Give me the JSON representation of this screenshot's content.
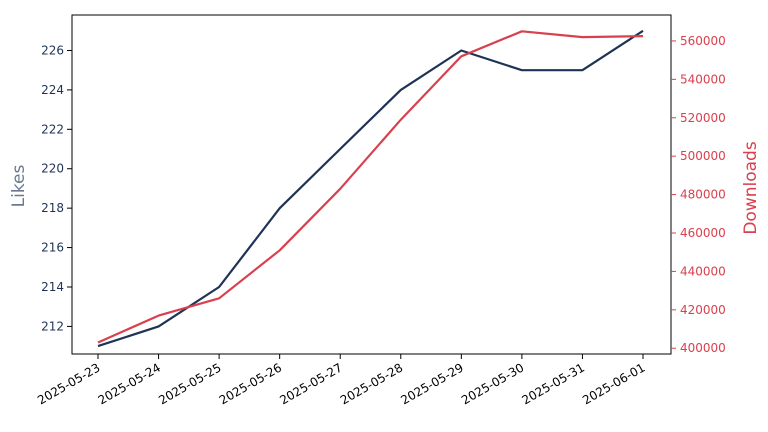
{
  "chart_data": {
    "type": "line",
    "x": [
      "2025-05-23",
      "2025-05-24",
      "2025-05-25",
      "2025-05-26",
      "2025-05-27",
      "2025-05-28",
      "2025-05-29",
      "2025-05-30",
      "2025-05-31",
      "2025-06-01"
    ],
    "left_axis": {
      "label": "Likes",
      "label_color": "#6b7a90",
      "tick_color": "#1f3354",
      "ylim": [
        210.6,
        227.8
      ],
      "ticks": [
        212,
        214,
        216,
        218,
        220,
        222,
        224,
        226
      ]
    },
    "right_axis": {
      "label": "Downloads",
      "color": "#d9404e",
      "ylim": [
        397000,
        573500
      ],
      "ticks": [
        400000,
        420000,
        440000,
        460000,
        480000,
        500000,
        520000,
        540000,
        560000
      ]
    },
    "series": [
      {
        "axis": "left",
        "color": "#1f3354",
        "values": [
          211,
          212,
          214,
          218,
          221,
          224,
          226,
          225,
          225,
          227
        ]
      },
      {
        "axis": "right",
        "color": "#d9404e",
        "values": [
          403000,
          417000,
          426000,
          451000,
          483000,
          519000,
          552000,
          565000,
          562000,
          562500
        ]
      }
    ],
    "grid": false,
    "legend": "none"
  }
}
